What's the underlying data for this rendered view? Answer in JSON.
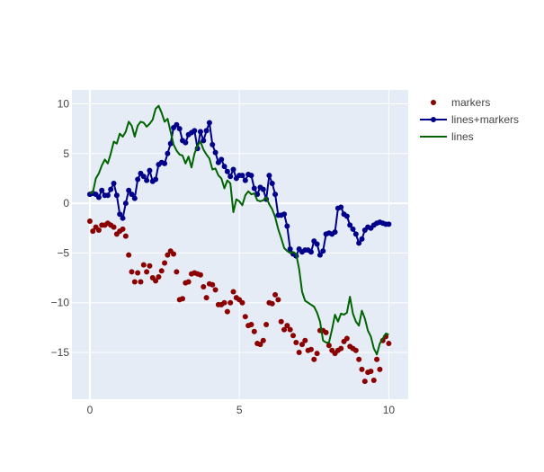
{
  "chart_data": {
    "type": "scatter",
    "xlim": [
      -0.6,
      10.65
    ],
    "ylim": [
      -19.7,
      11.4
    ],
    "xticks": [
      0,
      5,
      10
    ],
    "yticks": [
      10,
      5,
      0,
      -5,
      -10,
      -15
    ],
    "xtick_labels": [
      "0",
      "5",
      "10"
    ],
    "ytick_labels": [
      "10",
      "5",
      "0",
      "−5",
      "−10",
      "−15"
    ],
    "grid": true,
    "legend_position": "top-right",
    "plot_background": "#e5ecf6",
    "series": [
      {
        "name": "markers",
        "mode": "markers",
        "color": "#8b0000",
        "x": [
          0,
          0.1,
          0.2,
          0.3,
          0.4,
          0.5,
          0.6,
          0.7,
          0.8,
          0.9,
          1.0,
          1.1,
          1.2,
          1.3,
          1.4,
          1.5,
          1.6,
          1.7,
          1.8,
          1.9,
          2.0,
          2.1,
          2.2,
          2.3,
          2.4,
          2.5,
          2.6,
          2.7,
          2.8,
          2.9,
          3.0,
          3.1,
          3.2,
          3.3,
          3.4,
          3.5,
          3.6,
          3.7,
          3.8,
          3.9,
          4.0,
          4.1,
          4.2,
          4.3,
          4.4,
          4.5,
          4.6,
          4.7,
          4.8,
          4.9,
          5.0,
          5.1,
          5.2,
          5.3,
          5.4,
          5.5,
          5.6,
          5.7,
          5.8,
          5.9,
          6.0,
          6.1,
          6.2,
          6.3,
          6.4,
          6.5,
          6.6,
          6.7,
          6.8,
          6.9,
          7.0,
          7.1,
          7.2,
          7.3,
          7.4,
          7.5,
          7.6,
          7.7,
          7.8,
          7.9,
          8.0,
          8.1,
          8.2,
          8.3,
          8.4,
          8.5,
          8.6,
          8.7,
          8.8,
          8.9,
          9.0,
          9.1,
          9.2,
          9.3,
          9.4,
          9.5,
          9.6,
          9.7,
          9.8,
          9.9,
          10.0
        ],
        "y": [
          -1.8,
          -2.8,
          -2.4,
          -2.7,
          -2.2,
          -2.2,
          -2.0,
          -2.2,
          -2.4,
          -3.1,
          -2.8,
          -2.6,
          -3.3,
          -5.2,
          -6.9,
          -7.9,
          -7.0,
          -7.9,
          -6.2,
          -6.9,
          -6.3,
          -7.5,
          -7.8,
          -7.4,
          -6.8,
          -6.0,
          -5.2,
          -4.8,
          -5.1,
          -6.9,
          -9.7,
          -9.6,
          -8.0,
          -7.9,
          -7.1,
          -7.0,
          -7.1,
          -7.2,
          -8.4,
          -9.5,
          -8.1,
          -8.2,
          -8.7,
          -10.2,
          -10.2,
          -10.0,
          -10.9,
          -10.0,
          -8.9,
          -9.5,
          -9.7,
          -10.0,
          -11.4,
          -12.3,
          -12.2,
          -12.9,
          -14.1,
          -14.2,
          -13.8,
          -12.2,
          -10.0,
          -10.1,
          -9.2,
          -9.7,
          -11.9,
          -12.7,
          -12.3,
          -12.7,
          -13.3,
          -14.0,
          -15.0,
          -14.2,
          -13.8,
          -14.8,
          -14.7,
          -15.7,
          -15.1,
          -12.8,
          -12.8,
          -13.0,
          -14.3,
          -14.8,
          -15.1,
          -14.8,
          -14.6,
          -13.9,
          -13.6,
          -14.4,
          -14.6,
          -14.8,
          -15.7,
          -16.7,
          -17.9,
          -17.0,
          -16.9,
          -17.8,
          -15.7,
          -16.7,
          -13.8,
          -13.4,
          -14.1
        ]
      },
      {
        "name": "lines+markers",
        "mode": "lines+markers",
        "color": "#00008b",
        "x": [
          0,
          0.1,
          0.2,
          0.3,
          0.4,
          0.5,
          0.6,
          0.7,
          0.8,
          0.9,
          1.0,
          1.1,
          1.2,
          1.3,
          1.4,
          1.5,
          1.6,
          1.7,
          1.8,
          1.9,
          2.0,
          2.1,
          2.2,
          2.3,
          2.4,
          2.5,
          2.6,
          2.7,
          2.8,
          2.9,
          3.0,
          3.1,
          3.2,
          3.3,
          3.4,
          3.5,
          3.6,
          3.7,
          3.8,
          3.9,
          4.0,
          4.1,
          4.2,
          4.3,
          4.4,
          4.5,
          4.6,
          4.7,
          4.8,
          4.9,
          5.0,
          5.1,
          5.2,
          5.3,
          5.4,
          5.5,
          5.6,
          5.7,
          5.8,
          5.9,
          6.0,
          6.1,
          6.2,
          6.3,
          6.4,
          6.5,
          6.6,
          6.7,
          6.8,
          6.9,
          7.0,
          7.1,
          7.2,
          7.3,
          7.4,
          7.5,
          7.6,
          7.7,
          7.8,
          7.9,
          8.0,
          8.1,
          8.2,
          8.3,
          8.4,
          8.5,
          8.6,
          8.7,
          8.8,
          8.9,
          9.0,
          9.1,
          9.2,
          9.3,
          9.4,
          9.5,
          9.6,
          9.7,
          9.8,
          9.9,
          10.0
        ],
        "y": [
          0.9,
          1.0,
          0.9,
          0.6,
          1.3,
          0.8,
          0.8,
          1.4,
          2.0,
          0.8,
          -1.1,
          -1.5,
          0.0,
          1.3,
          0.9,
          0.5,
          2.4,
          3.0,
          2.7,
          2.3,
          3.3,
          2.2,
          2.4,
          3.9,
          4.1,
          4.0,
          5.0,
          6.0,
          7.6,
          7.9,
          7.5,
          6.3,
          6.1,
          6.9,
          7.1,
          7.3,
          5.5,
          7.2,
          6.3,
          7.3,
          8.1,
          5.9,
          5.1,
          4.1,
          4.4,
          3.7,
          3.2,
          2.7,
          3.4,
          2.5,
          2.8,
          2.8,
          2.3,
          2.9,
          2.8,
          1.5,
          0.9,
          1.6,
          1.4,
          0.4,
          2.8,
          2.0,
          0.9,
          -1.2,
          -1.2,
          -1.1,
          -2.3,
          -4.6,
          -5.1,
          -5.3,
          -4.6,
          -4.9,
          -4.7,
          -4.7,
          -4.9,
          -3.8,
          -4.1,
          -5.2,
          -4.8,
          -3.1,
          -3.0,
          -3.1,
          -2.9,
          -0.5,
          -0.4,
          -1.1,
          -1.3,
          -2.2,
          -2.6,
          -3.1,
          -4.0,
          -3.6,
          -2.7,
          -2.4,
          -2.5,
          -2.2,
          -2.0,
          -1.9,
          -2.0,
          -2.1,
          -2.1
        ]
      },
      {
        "name": "lines",
        "mode": "lines",
        "color": "#006400",
        "x": [
          0,
          0.1,
          0.2,
          0.3,
          0.4,
          0.5,
          0.6,
          0.7,
          0.8,
          0.9,
          1.0,
          1.1,
          1.2,
          1.3,
          1.4,
          1.5,
          1.6,
          1.7,
          1.8,
          1.9,
          2.0,
          2.1,
          2.2,
          2.3,
          2.4,
          2.5,
          2.6,
          2.7,
          2.8,
          2.9,
          3.0,
          3.1,
          3.2,
          3.3,
          3.4,
          3.5,
          3.6,
          3.7,
          3.8,
          3.9,
          4.0,
          4.1,
          4.2,
          4.3,
          4.4,
          4.5,
          4.6,
          4.7,
          4.8,
          4.9,
          5.0,
          5.1,
          5.2,
          5.3,
          5.4,
          5.5,
          5.6,
          5.7,
          5.8,
          5.9,
          6.0,
          6.1,
          6.2,
          6.3,
          6.4,
          6.5,
          6.6,
          6.7,
          6.8,
          6.9,
          7.0,
          7.1,
          7.2,
          7.3,
          7.4,
          7.5,
          7.6,
          7.7,
          7.8,
          7.9,
          8.0,
          8.1,
          8.2,
          8.3,
          8.4,
          8.5,
          8.6,
          8.7,
          8.8,
          8.9,
          9.0,
          9.1,
          9.2,
          9.3,
          9.4,
          9.5,
          9.6,
          9.7,
          9.8,
          9.9,
          10.0
        ],
        "y": [
          1.0,
          1.1,
          2.5,
          3.0,
          3.8,
          4.4,
          4.0,
          5.0,
          6.2,
          6.0,
          7.0,
          6.7,
          7.2,
          8.2,
          7.8,
          6.7,
          7.8,
          8.2,
          8.1,
          7.7,
          8.0,
          8.4,
          9.5,
          9.8,
          9.1,
          8.2,
          8.5,
          7.2,
          5.9,
          5.3,
          4.9,
          4.8,
          4.0,
          4.7,
          3.6,
          5.0,
          5.8,
          6.2,
          5.4,
          4.9,
          4.5,
          3.4,
          3.5,
          2.8,
          2.5,
          1.5,
          2.3,
          2.0,
          -0.9,
          0.4,
          0.2,
          -0.2,
          0.8,
          1.2,
          0.9,
          1.0,
          0.3,
          0.2,
          0.3,
          0.6,
          -0.1,
          -0.6,
          -1.4,
          -2.6,
          -3.5,
          -4.5,
          -4.8,
          -5.0,
          -4.9,
          -5.1,
          -6.6,
          -8.9,
          -9.8,
          -10.0,
          -10.2,
          -10.4,
          -11.0,
          -11.9,
          -13.8,
          -14.0,
          -14.0,
          -12.7,
          -11.2,
          -11.9,
          -11.1,
          -11.2,
          -11.0,
          -9.4,
          -11.1,
          -11.9,
          -12.3,
          -10.8,
          -11.6,
          -12.8,
          -13.4,
          -14.6,
          -15.2,
          -14.1,
          -13.6,
          -13.1,
          -13.2
        ]
      }
    ]
  }
}
